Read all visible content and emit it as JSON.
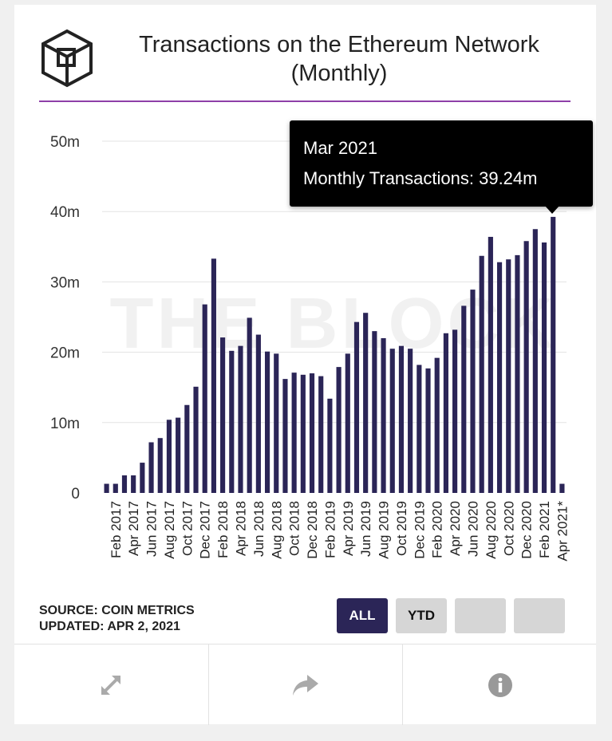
{
  "header": {
    "title": "Transactions on the Ethereum Network (Monthly)",
    "logo_icon": "the-block-cube-logo"
  },
  "tooltip": {
    "date": "Mar 2021",
    "value": "Monthly Transactions: 39.24m"
  },
  "footer": {
    "source": "SOURCE: COIN METRICS",
    "updated": "UPDATED: APR 2, 2021",
    "buttons": {
      "all": "ALL",
      "ytd": "YTD"
    },
    "icons": [
      "expand-icon",
      "share-icon",
      "info-icon"
    ]
  },
  "colors": {
    "bar": "#2b2557",
    "accent_rule": "#8e3fa8",
    "tooltip_bg": "#000000"
  },
  "chart_data": {
    "type": "bar",
    "title": "Transactions on the Ethereum Network (Monthly)",
    "watermark": "THE BLOCK",
    "ylim": [
      0,
      50
    ],
    "yticks": [
      0,
      10,
      20,
      30,
      40,
      50
    ],
    "ytick_labels": [
      "0",
      "10m",
      "20m",
      "30m",
      "40m",
      "50m"
    ],
    "grid": true,
    "categories": [
      "Jan 2017",
      "Feb 2017",
      "Mar 2017",
      "Apr 2017",
      "May 2017",
      "Jun 2017",
      "Jul 2017",
      "Aug 2017",
      "Sep 2017",
      "Oct 2017",
      "Nov 2017",
      "Dec 2017",
      "Jan 2018",
      "Feb 2018",
      "Mar 2018",
      "Apr 2018",
      "May 2018",
      "Jun 2018",
      "Jul 2018",
      "Aug 2018",
      "Sep 2018",
      "Oct 2018",
      "Nov 2018",
      "Dec 2018",
      "Jan 2019",
      "Feb 2019",
      "Mar 2019",
      "Apr 2019",
      "May 2019",
      "Jun 2019",
      "Jul 2019",
      "Aug 2019",
      "Sep 2019",
      "Oct 2019",
      "Nov 2019",
      "Dec 2019",
      "Jan 2020",
      "Feb 2020",
      "Mar 2020",
      "Apr 2020",
      "May 2020",
      "Jun 2020",
      "Jul 2020",
      "Aug 2020",
      "Sep 2020",
      "Oct 2020",
      "Nov 2020",
      "Dec 2020",
      "Jan 2021",
      "Feb 2021",
      "Mar 2021",
      "Apr 2021*"
    ],
    "x_tick_labels": [
      "Feb 2017",
      "Apr 2017",
      "Jun 2017",
      "Aug 2017",
      "Oct 2017",
      "Dec 2017",
      "Feb 2018",
      "Apr 2018",
      "Jun 2018",
      "Aug 2018",
      "Oct 2018",
      "Dec 2018",
      "Feb 2019",
      "Apr 2019",
      "Jun 2019",
      "Aug 2019",
      "Oct 2019",
      "Dec 2019",
      "Feb 2020",
      "Apr 2020",
      "Jun 2020",
      "Aug 2020",
      "Oct 2020",
      "Dec 2020",
      "Feb 2021",
      "Apr 2021*"
    ],
    "series": [
      {
        "values": [
          1.3,
          1.3,
          2.5,
          2.5,
          4.3,
          7.2,
          7.8,
          10.4,
          10.7,
          12.5,
          15.1,
          26.8,
          33.3,
          22.1,
          20.2,
          20.9,
          24.9,
          22.5,
          20.1,
          19.8,
          16.2,
          17.1,
          16.8,
          17.0,
          16.6,
          13.4,
          17.9,
          19.8,
          24.3,
          25.6,
          23.0,
          22.0,
          20.5,
          20.9,
          20.5,
          18.2,
          17.7,
          19.2,
          22.7,
          23.2,
          26.6,
          28.9,
          33.7,
          36.4,
          32.8,
          33.2,
          33.8,
          35.8,
          37.5,
          35.6,
          39.24,
          1.3
        ]
      }
    ],
    "highlight_index": 50
  }
}
